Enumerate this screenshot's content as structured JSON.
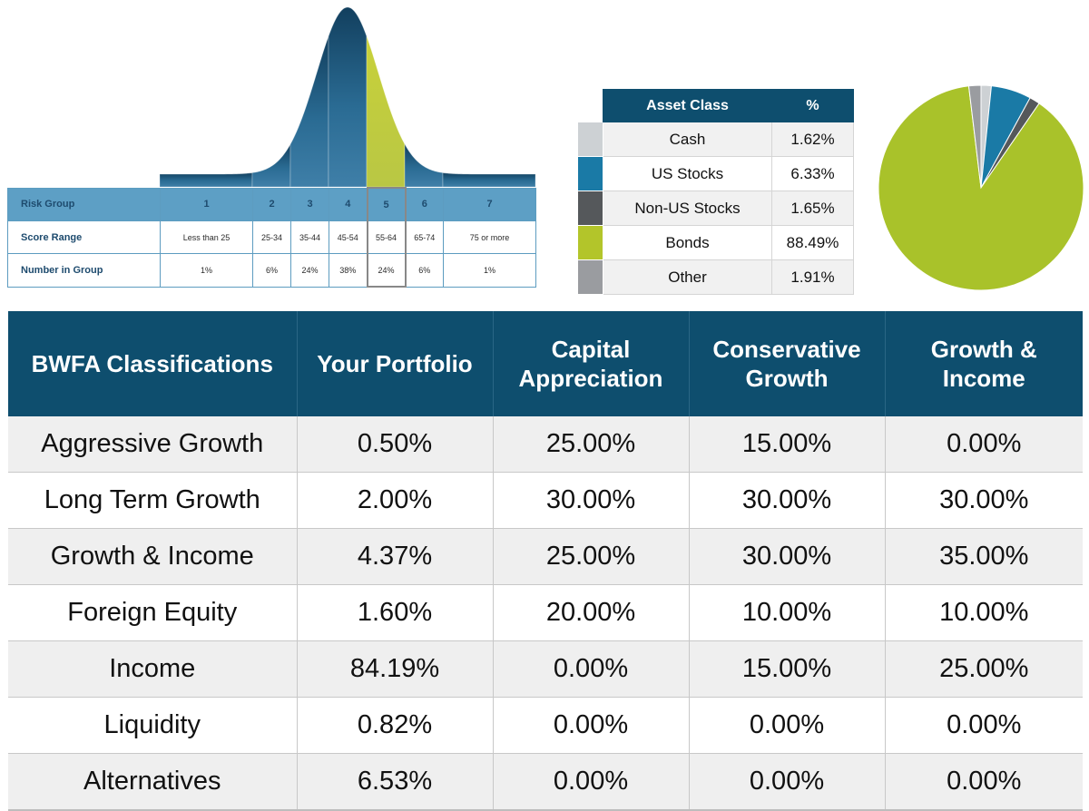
{
  "risk_table": {
    "row_labels": [
      "Risk Group",
      "Score Range",
      "Number in Group"
    ],
    "groups": [
      {
        "group": "1",
        "score": "Less than 25",
        "count": "1%"
      },
      {
        "group": "2",
        "score": "25-34",
        "count": "6%"
      },
      {
        "group": "3",
        "score": "35-44",
        "count": "24%"
      },
      {
        "group": "4",
        "score": "45-54",
        "count": "38%"
      },
      {
        "group": "5",
        "score": "55-64",
        "count": "24%"
      },
      {
        "group": "6",
        "score": "65-74",
        "count": "6%"
      },
      {
        "group": "7",
        "score": "75 or more",
        "count": "1%"
      }
    ],
    "highlighted_group": "5"
  },
  "chart_data": [
    {
      "type": "area",
      "categories": [
        "1",
        "2",
        "3",
        "4",
        "5",
        "6",
        "7"
      ],
      "values": [
        1,
        6,
        24,
        38,
        24,
        6,
        1
      ],
      "highlighted_category": "5",
      "colors": {
        "base": "#1f5f85",
        "highlight": "#bccb3c"
      }
    },
    {
      "type": "table",
      "headers": [
        "Asset Class",
        "%"
      ],
      "rows": [
        {
          "label": "Cash",
          "value": "1.62%",
          "color": "#cdd1d4"
        },
        {
          "label": "US Stocks",
          "value": "6.33%",
          "color": "#1a7aa6"
        },
        {
          "label": "Non-US Stocks",
          "value": "1.65%",
          "color": "#55585b"
        },
        {
          "label": "Bonds",
          "value": "88.49%",
          "color": "#b3c52a"
        },
        {
          "label": "Other",
          "value": "1.91%",
          "color": "#9a9ca0"
        }
      ]
    },
    {
      "type": "pie",
      "slices": [
        {
          "label": "Cash",
          "value": 1.62,
          "color": "#cdd1d4"
        },
        {
          "label": "US Stocks",
          "value": 6.33,
          "color": "#1a7aa6"
        },
        {
          "label": "Non-US Stocks",
          "value": 1.65,
          "color": "#55585b"
        },
        {
          "label": "Bonds",
          "value": 88.49,
          "color": "#a9c22a"
        },
        {
          "label": "Other",
          "value": 1.91,
          "color": "#9a9ca0"
        }
      ]
    },
    {
      "type": "table",
      "headers": [
        "BWFA Classifications",
        "Your Portfolio",
        "Capital Appreciation",
        "Conservative Growth",
        "Growth & Income"
      ],
      "rows": [
        [
          "Aggressive Growth",
          "0.50%",
          "25.00%",
          "15.00%",
          "0.00%"
        ],
        [
          "Long Term Growth",
          "2.00%",
          "30.00%",
          "30.00%",
          "30.00%"
        ],
        [
          "Growth & Income",
          "4.37%",
          "25.00%",
          "30.00%",
          "35.00%"
        ],
        [
          "Foreign Equity",
          "1.60%",
          "20.00%",
          "10.00%",
          "10.00%"
        ],
        [
          "Income",
          "84.19%",
          "0.00%",
          "15.00%",
          "25.00%"
        ],
        [
          "Liquidity",
          "0.82%",
          "0.00%",
          "0.00%",
          "0.00%"
        ],
        [
          "Alternatives",
          "6.53%",
          "0.00%",
          "0.00%",
          "0.00%"
        ]
      ]
    }
  ]
}
